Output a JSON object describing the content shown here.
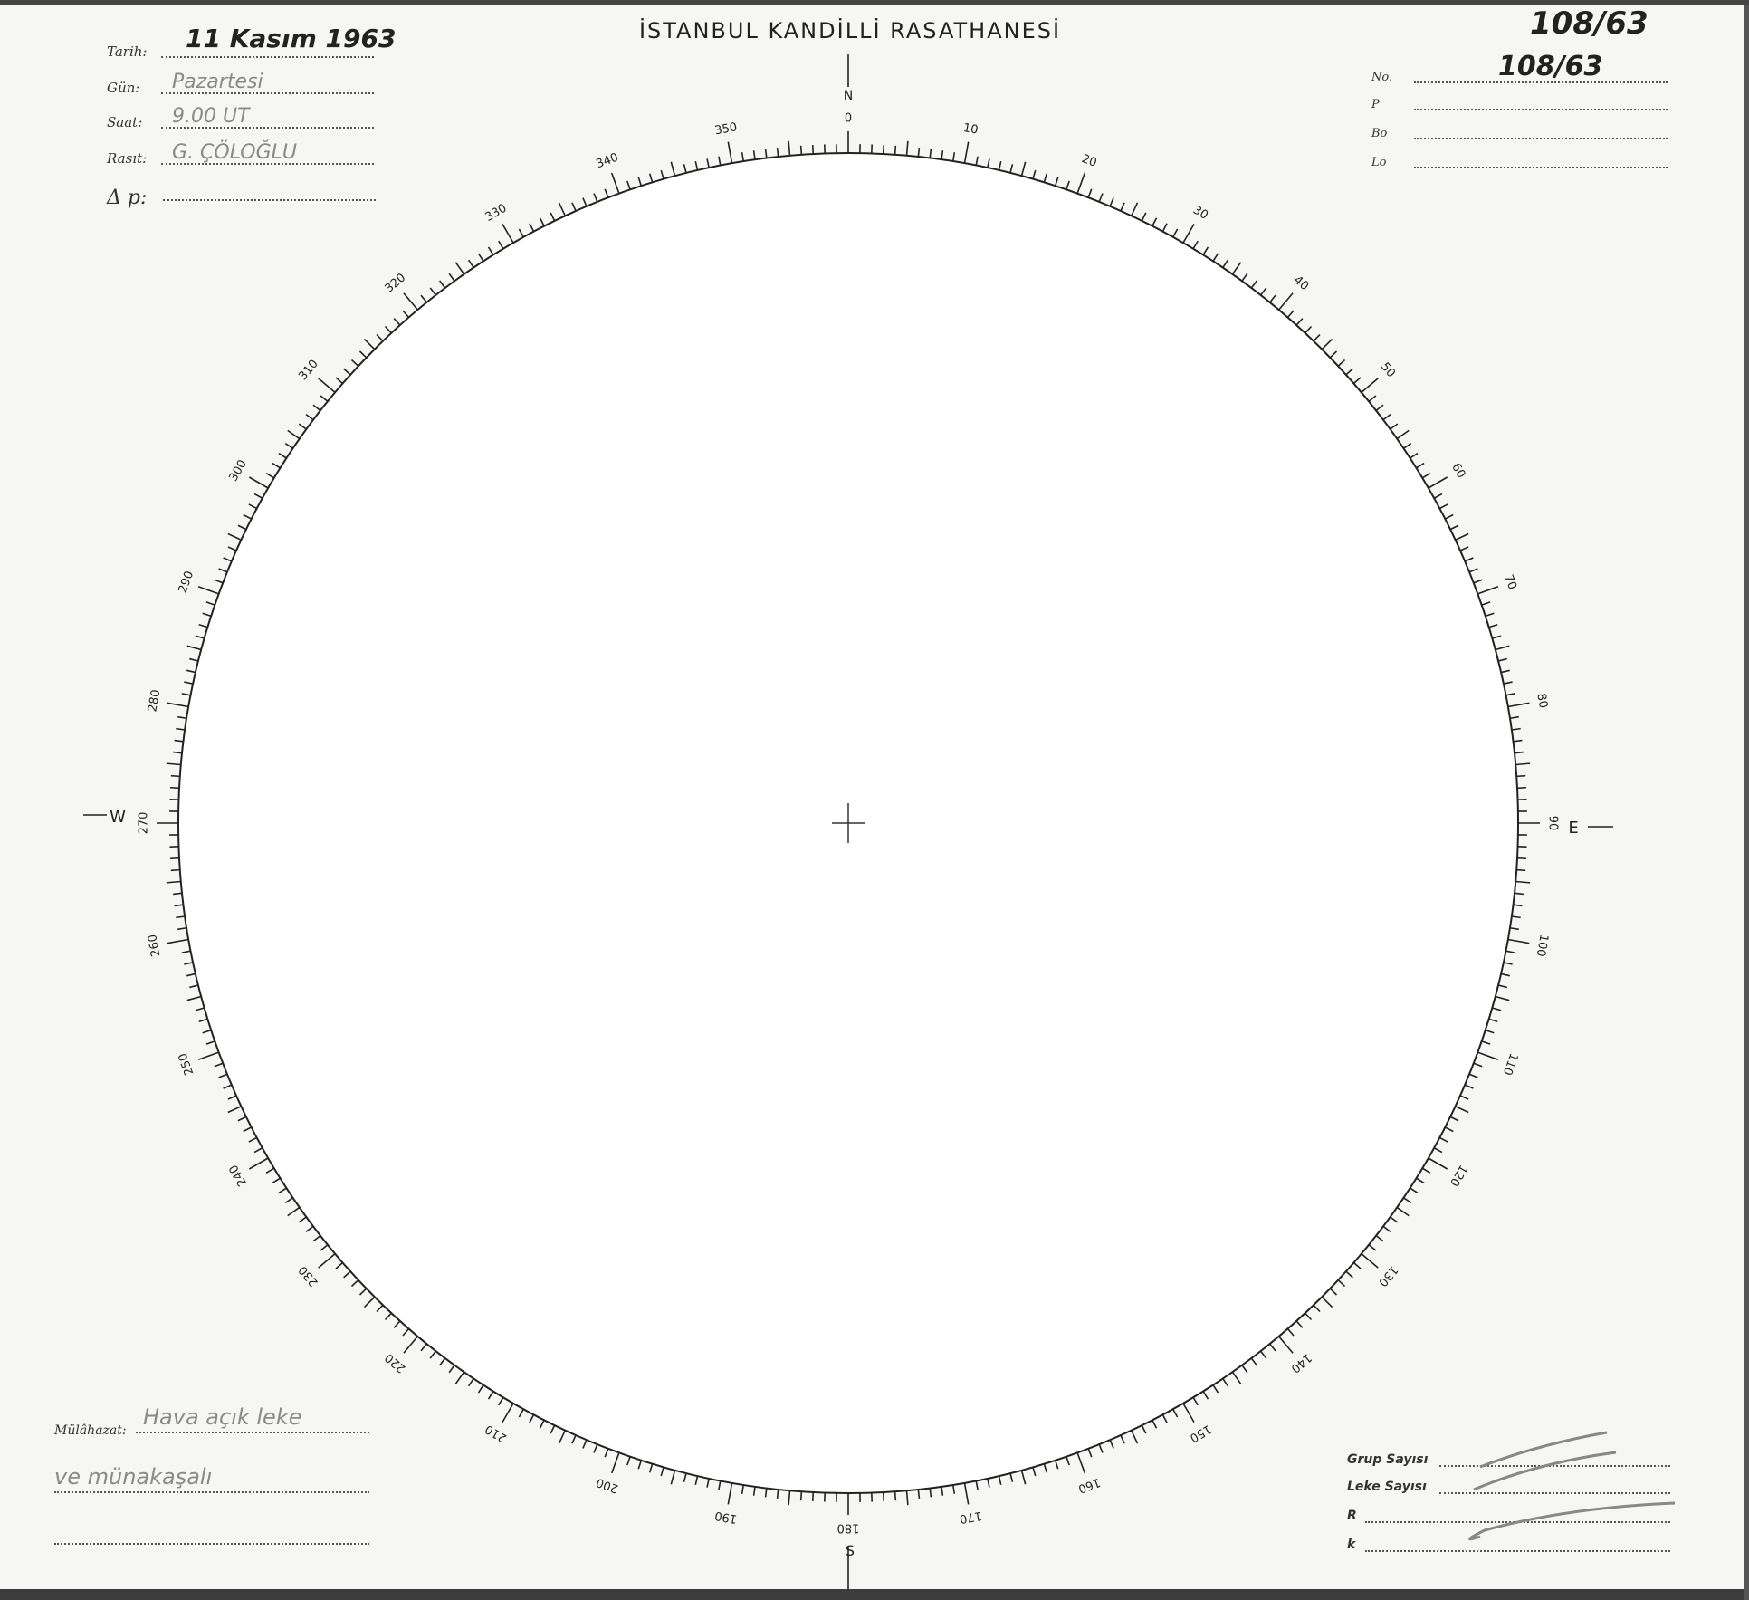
{
  "header": {
    "title": "İSTANBUL KANDİLLİ RASATHANESİ"
  },
  "left_fields": [
    {
      "label": "Tarih:",
      "value": "11 Kasım 1963",
      "style": "ink"
    },
    {
      "label": "Gün:",
      "value": "Pazartesi",
      "style": "pencil"
    },
    {
      "label": "Saat:",
      "value": "9.00 UT",
      "style": "pencil"
    },
    {
      "label": "Rasıt:",
      "value": "G. ÇÖLOĞLU",
      "style": "pencil"
    },
    {
      "label": "Δ p:",
      "value": "",
      "style": "pencil"
    }
  ],
  "right_fields": [
    {
      "label": "No.",
      "value": "108/63"
    },
    {
      "label": "P",
      "value": ""
    },
    {
      "label": "Bo",
      "value": ""
    },
    {
      "label": "Lo",
      "value": ""
    }
  ],
  "corner_number": "108/63",
  "remarks": {
    "label": "Mülâhazat:",
    "lines": [
      "Hava açık leke",
      "ve münakaşalı",
      ""
    ]
  },
  "summary_fields": [
    {
      "label": "Grup Sayısı",
      "value": ""
    },
    {
      "label": "Leke Sayısı",
      "value": ""
    },
    {
      "label": "R",
      "value": ""
    },
    {
      "label": "k",
      "value": ""
    }
  ],
  "dial": {
    "cardinals": {
      "north": "N",
      "south": "S",
      "east": "E",
      "west": "W"
    },
    "degree_step": 1,
    "label_step": 10,
    "labels": [
      "0",
      "10",
      "20",
      "30",
      "40",
      "50",
      "60",
      "70",
      "80",
      "90",
      "100",
      "110",
      "120",
      "130",
      "140",
      "150",
      "160",
      "170",
      "180",
      "190",
      "200",
      "210",
      "220",
      "230",
      "240",
      "250",
      "260",
      "270",
      "280",
      "290",
      "300",
      "310",
      "320",
      "330",
      "340",
      "350"
    ]
  }
}
